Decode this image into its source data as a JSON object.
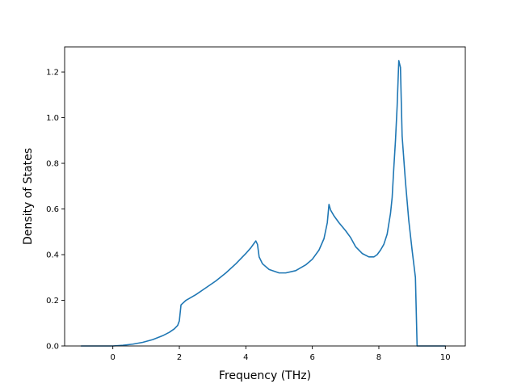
{
  "chart_data": {
    "type": "line",
    "title": "",
    "xlabel": "Frequency (THz)",
    "ylabel": "Density of States",
    "xlim": [
      -1.45,
      10.6
    ],
    "ylim": [
      0.0,
      1.31
    ],
    "xticks": [
      0,
      2,
      4,
      6,
      8,
      10
    ],
    "yticks": [
      0.0,
      0.2,
      0.4,
      0.6,
      0.8,
      1.0,
      1.2
    ],
    "xtick_labels": [
      "0",
      "2",
      "4",
      "6",
      "8",
      "10"
    ],
    "ytick_labels": [
      "0.0",
      "0.2",
      "0.4",
      "0.6",
      "0.8",
      "1.0",
      "1.2"
    ],
    "grid": false,
    "legend": null,
    "series": [
      {
        "color": "#1f77b4",
        "x": [
          -0.95,
          -0.5,
          0.0,
          0.3,
          0.6,
          0.9,
          1.2,
          1.5,
          1.7,
          1.85,
          1.95,
          2.0,
          2.05,
          2.2,
          2.5,
          2.8,
          3.1,
          3.4,
          3.7,
          4.0,
          4.15,
          4.25,
          4.3,
          4.35,
          4.4,
          4.5,
          4.7,
          5.0,
          5.2,
          5.5,
          5.8,
          6.0,
          6.2,
          6.35,
          6.45,
          6.5,
          6.55,
          6.65,
          6.8,
          7.0,
          7.15,
          7.3,
          7.5,
          7.7,
          7.85,
          7.95,
          8.05,
          8.15,
          8.25,
          8.35,
          8.4,
          8.45,
          8.5,
          8.55,
          8.6,
          8.65,
          8.7,
          8.8,
          8.9,
          9.0,
          9.1,
          9.15,
          9.3,
          10.0
        ],
        "y": [
          0.0,
          0.0,
          0.0,
          0.003,
          0.008,
          0.016,
          0.028,
          0.045,
          0.06,
          0.075,
          0.09,
          0.11,
          0.18,
          0.2,
          0.225,
          0.255,
          0.285,
          0.32,
          0.36,
          0.405,
          0.43,
          0.45,
          0.46,
          0.445,
          0.39,
          0.36,
          0.335,
          0.32,
          0.32,
          0.33,
          0.355,
          0.38,
          0.42,
          0.47,
          0.54,
          0.62,
          0.595,
          0.57,
          0.54,
          0.505,
          0.475,
          0.435,
          0.405,
          0.39,
          0.39,
          0.4,
          0.42,
          0.445,
          0.49,
          0.58,
          0.65,
          0.78,
          0.9,
          1.05,
          1.25,
          1.22,
          0.92,
          0.72,
          0.55,
          0.42,
          0.3,
          0.0,
          0.0,
          0.0
        ]
      }
    ]
  }
}
